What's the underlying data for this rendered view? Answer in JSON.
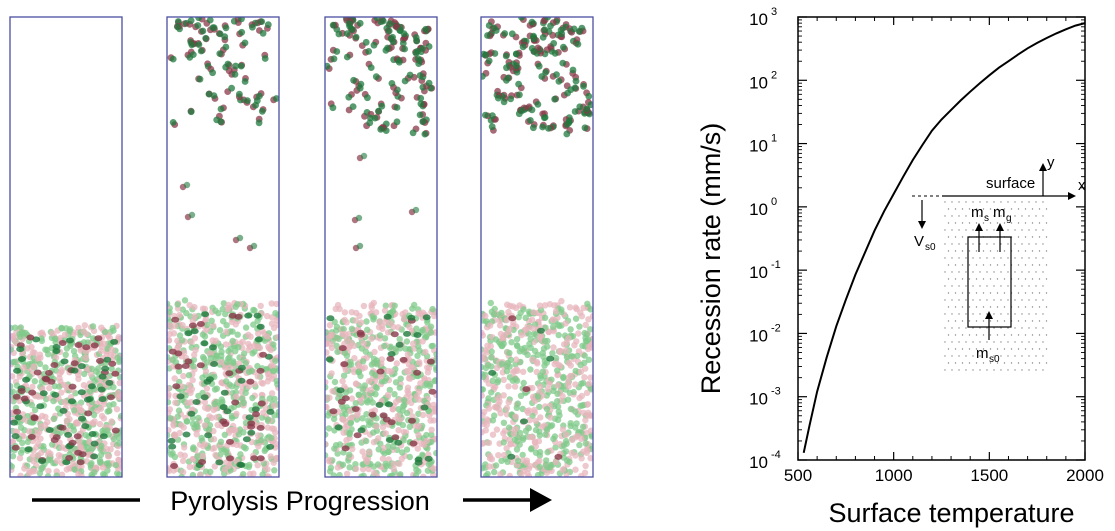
{
  "colors": {
    "panel_border": "#4a4fa0",
    "particle_green": "#7fc98a",
    "particle_green_dark": "#1f7a3d",
    "particle_pink": "#e7b5bc",
    "particle_pink_dark": "#8a3a4a",
    "curve": "#000000"
  },
  "left": {
    "caption": "Pyrolysis Progression",
    "panels": [
      {
        "bed_level": 0.68,
        "gas_density": 0.0,
        "dark_fraction": 0.55
      },
      {
        "bed_level": 0.61,
        "gas_density": 0.55,
        "dark_fraction": 0.42
      },
      {
        "bed_level": 0.61,
        "gas_density": 0.85,
        "dark_fraction": 0.28
      },
      {
        "bed_level": 0.64,
        "gas_density": 1.0,
        "dark_fraction": 0.05
      }
    ]
  },
  "chart_data": {
    "type": "line",
    "xlabel": "Surface temperature",
    "ylabel": "Recession rate (mm/s)",
    "xlim": [
      500,
      2000
    ],
    "ylim": [
      0.0001,
      1000
    ],
    "y_scale": "log",
    "x_ticks": [
      500,
      1000,
      1500,
      2000
    ],
    "x_tick_labels": [
      "500",
      "1000",
      "1500",
      "2000"
    ],
    "y_ticks": [
      0.0001,
      0.001,
      0.01,
      0.1,
      1,
      10,
      100,
      1000
    ],
    "y_tick_bases": [
      "10",
      "10",
      "10",
      "10",
      "10",
      "10",
      "10",
      "10"
    ],
    "y_tick_exps": [
      "-4",
      "-3",
      "-2",
      "-1",
      "0",
      "1",
      "2",
      "3"
    ],
    "series": [
      {
        "x": [
          530,
          560,
          600,
          650,
          700,
          750,
          800,
          850,
          900,
          950,
          1000,
          1050,
          1100,
          1150,
          1200,
          1250,
          1300,
          1350,
          1400,
          1450,
          1500,
          1550,
          1600,
          1650,
          1700,
          1750,
          1800,
          1850,
          1900,
          1950,
          2000
        ],
        "y": [
          0.00013,
          0.00035,
          0.0012,
          0.0042,
          0.013,
          0.034,
          0.085,
          0.19,
          0.42,
          0.85,
          1.6,
          3.0,
          5.5,
          9.5,
          16,
          24,
          34,
          48,
          66,
          90,
          120,
          158,
          200,
          255,
          320,
          390,
          465,
          550,
          640,
          730,
          800
        ]
      }
    ],
    "grid": false,
    "inset": {
      "surface_label": "surface",
      "x_axis_label": "x",
      "y_axis_label": "y",
      "vs0_main": "V",
      "vs0_sub": "s0",
      "ms_main": "m",
      "ms_sub": "s",
      "mg_main": "m",
      "mg_sub": "g",
      "ms0_main": "m",
      "ms0_sub": "s0"
    }
  }
}
